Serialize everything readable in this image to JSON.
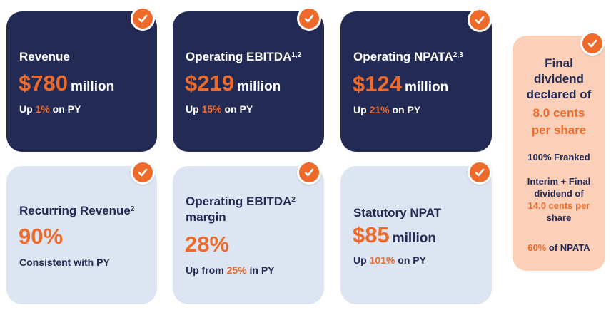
{
  "cards": {
    "revenue": {
      "label": "Revenue",
      "value": "$780",
      "unit": "million",
      "change_prefix": "Up ",
      "change_value": "1%",
      "change_suffix": " on PY"
    },
    "ebitda": {
      "label": "Operating EBITDA",
      "superscript": "1,2",
      "value": "$219",
      "unit": "million",
      "change_prefix": "Up ",
      "change_value": "15%",
      "change_suffix": " on PY"
    },
    "npata": {
      "label": "Operating NPATA",
      "superscript": "2,3",
      "value": "$124",
      "unit": "million",
      "change_prefix": "Up ",
      "change_value": "21%",
      "change_suffix": " on PY"
    },
    "recurring": {
      "label": "Recurring Revenue",
      "superscript": "2",
      "value": "90%",
      "note": "Consistent with PY"
    },
    "margin": {
      "label_line1": "Operating EBITDA",
      "superscript": "2",
      "label_line2": "margin",
      "value": "28%",
      "change_prefix": "Up from ",
      "change_value": "25%",
      "change_suffix": " in PY"
    },
    "npat": {
      "label": "Statutory NPAT",
      "value": "$85",
      "unit": "million",
      "change_prefix": "Up ",
      "change_value": "101%",
      "change_suffix": " on PY"
    }
  },
  "dividend": {
    "heading_lines": [
      "Final",
      "dividend",
      "declared of"
    ],
    "amount_lines": [
      "8.0 cents",
      "per share"
    ],
    "franked": "100% Franked",
    "interim_lines": [
      "Interim + Final",
      "dividend of"
    ],
    "interim_amount_lines": [
      "14.0 cents per"
    ],
    "interim_tail": "share",
    "npata_pct": "60%",
    "npata_suffix": " of NPATA"
  },
  "colors": {
    "navy": "#232b55",
    "light_card": "#dce5f1",
    "peach": "#fbcfb8",
    "accent_orange": "#ee6a2b"
  },
  "icons": {
    "badge": "checkmark-icon"
  }
}
